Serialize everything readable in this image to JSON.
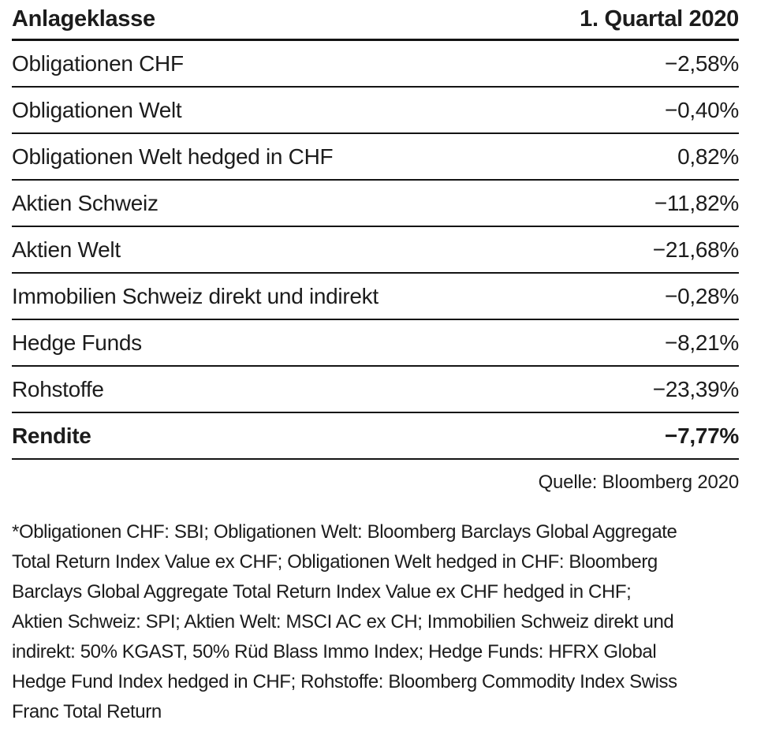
{
  "table": {
    "header": {
      "label": "Anlageklasse",
      "value": "1. Quartal 2020"
    },
    "rows": [
      {
        "label": "Obligationen CHF",
        "value": "−2,58%"
      },
      {
        "label": "Obligationen Welt",
        "value": "−0,40%"
      },
      {
        "label": "Obligationen Welt hedged in CHF",
        "value": "0,82%"
      },
      {
        "label": "Aktien Schweiz",
        "value": "−11,82%"
      },
      {
        "label": "Aktien Welt",
        "value": "−21,68%"
      },
      {
        "label": "Immobilien Schweiz direkt und indirekt",
        "value": "−0,28%"
      },
      {
        "label": "Hedge Funds",
        "value": "−8,21%"
      },
      {
        "label": "Rohstoffe",
        "value": "−23,39%"
      }
    ],
    "total_row": {
      "label": "Rendite",
      "value": "−7,77%"
    }
  },
  "source": "Quelle: Bloomberg 2020",
  "footnote": {
    "lines": [
      "*Obligationen CHF: SBI; Obligationen Welt: Bloomberg Barclays Global Aggregate",
      "Total Return Index Value ex CHF; Obligationen Welt hedged in CHF: Bloomberg",
      "Barclays Global Aggregate Total Return Index Value ex CHF hedged in CHF;",
      "Aktien Schweiz: SPI; Aktien Welt: MSCI AC ex CH; Immobilien Schweiz direkt und",
      "indirekt: 50% KGAST, 50% Rüd Blass Immo Index; Hedge Funds: HFRX Global",
      "Hedge Fund Index hedged in CHF; Rohstoffe: Bloomberg Commodity Index Swiss",
      "Franc Total Return"
    ]
  }
}
